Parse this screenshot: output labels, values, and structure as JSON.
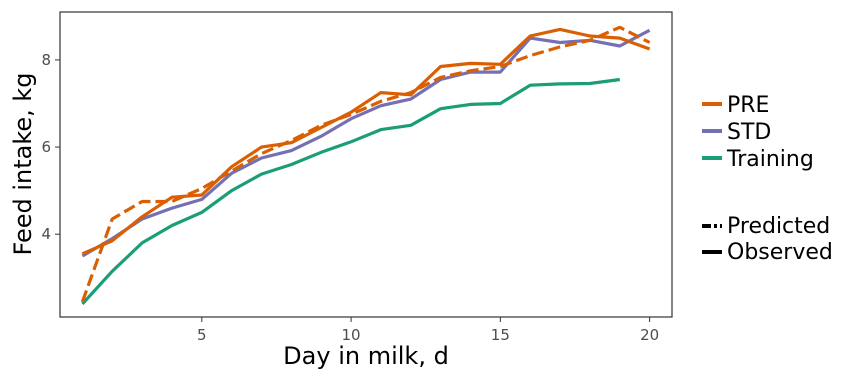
{
  "chart_data": {
    "type": "line",
    "xlabel": "Day in milk, d",
    "ylabel": "Feed intake, kg",
    "xlim": [
      0.25,
      20.75
    ],
    "ylim": [
      2.1,
      9.1
    ],
    "x_ticks": [
      5,
      10,
      15,
      20
    ],
    "y_ticks": [
      4,
      6,
      8
    ],
    "grid": false,
    "legend_position": "right",
    "colors": {
      "PRE": "#d95f02",
      "STD": "#7570b3",
      "Training": "#1b9e77"
    },
    "series": [
      {
        "name": "PRE",
        "linetype": "Observed",
        "x": [
          1,
          2,
          3,
          4,
          5,
          6,
          7,
          8,
          9,
          10,
          11,
          12,
          13,
          14,
          15,
          16,
          17,
          18,
          19,
          20
        ],
        "values": [
          3.55,
          3.85,
          4.4,
          4.85,
          4.9,
          5.55,
          6.0,
          6.1,
          6.45,
          6.8,
          7.25,
          7.2,
          7.85,
          7.92,
          7.9,
          8.55,
          8.7,
          8.55,
          8.5,
          8.25
        ]
      },
      {
        "name": "PRE",
        "linetype": "Predicted",
        "x": [
          1,
          2,
          3,
          4,
          5,
          6,
          7,
          8,
          9,
          10,
          11,
          12,
          13,
          14,
          15,
          16,
          17,
          18,
          19,
          20
        ],
        "values": [
          2.45,
          4.35,
          4.75,
          4.75,
          5.05,
          5.45,
          5.85,
          6.15,
          6.5,
          6.75,
          7.05,
          7.25,
          7.6,
          7.75,
          7.85,
          8.1,
          8.3,
          8.45,
          8.75,
          8.4
        ]
      },
      {
        "name": "STD",
        "linetype": "Observed",
        "x": [
          1,
          2,
          3,
          4,
          5,
          6,
          7,
          8,
          9,
          10,
          11,
          12,
          13,
          14,
          15,
          16,
          17,
          18,
          19,
          20
        ],
        "values": [
          3.5,
          3.9,
          4.35,
          4.6,
          4.8,
          5.4,
          5.75,
          5.92,
          6.25,
          6.65,
          6.95,
          7.1,
          7.55,
          7.72,
          7.72,
          8.5,
          8.4,
          8.45,
          8.32,
          8.68
        ]
      },
      {
        "name": "Training",
        "linetype": "Observed",
        "x": [
          1,
          2,
          3,
          4,
          5,
          6,
          7,
          8,
          9,
          10,
          11,
          12,
          13,
          14,
          15,
          16,
          17,
          18,
          19
        ],
        "values": [
          2.4,
          3.15,
          3.8,
          4.2,
          4.5,
          5.0,
          5.38,
          5.6,
          5.88,
          6.12,
          6.4,
          6.5,
          6.88,
          6.98,
          7.0,
          7.42,
          7.45,
          7.46,
          7.55
        ]
      }
    ],
    "legend": {
      "color_entries": [
        "PRE",
        "STD",
        "Training"
      ],
      "linetype_entries": [
        "Predicted",
        "Observed"
      ]
    }
  }
}
